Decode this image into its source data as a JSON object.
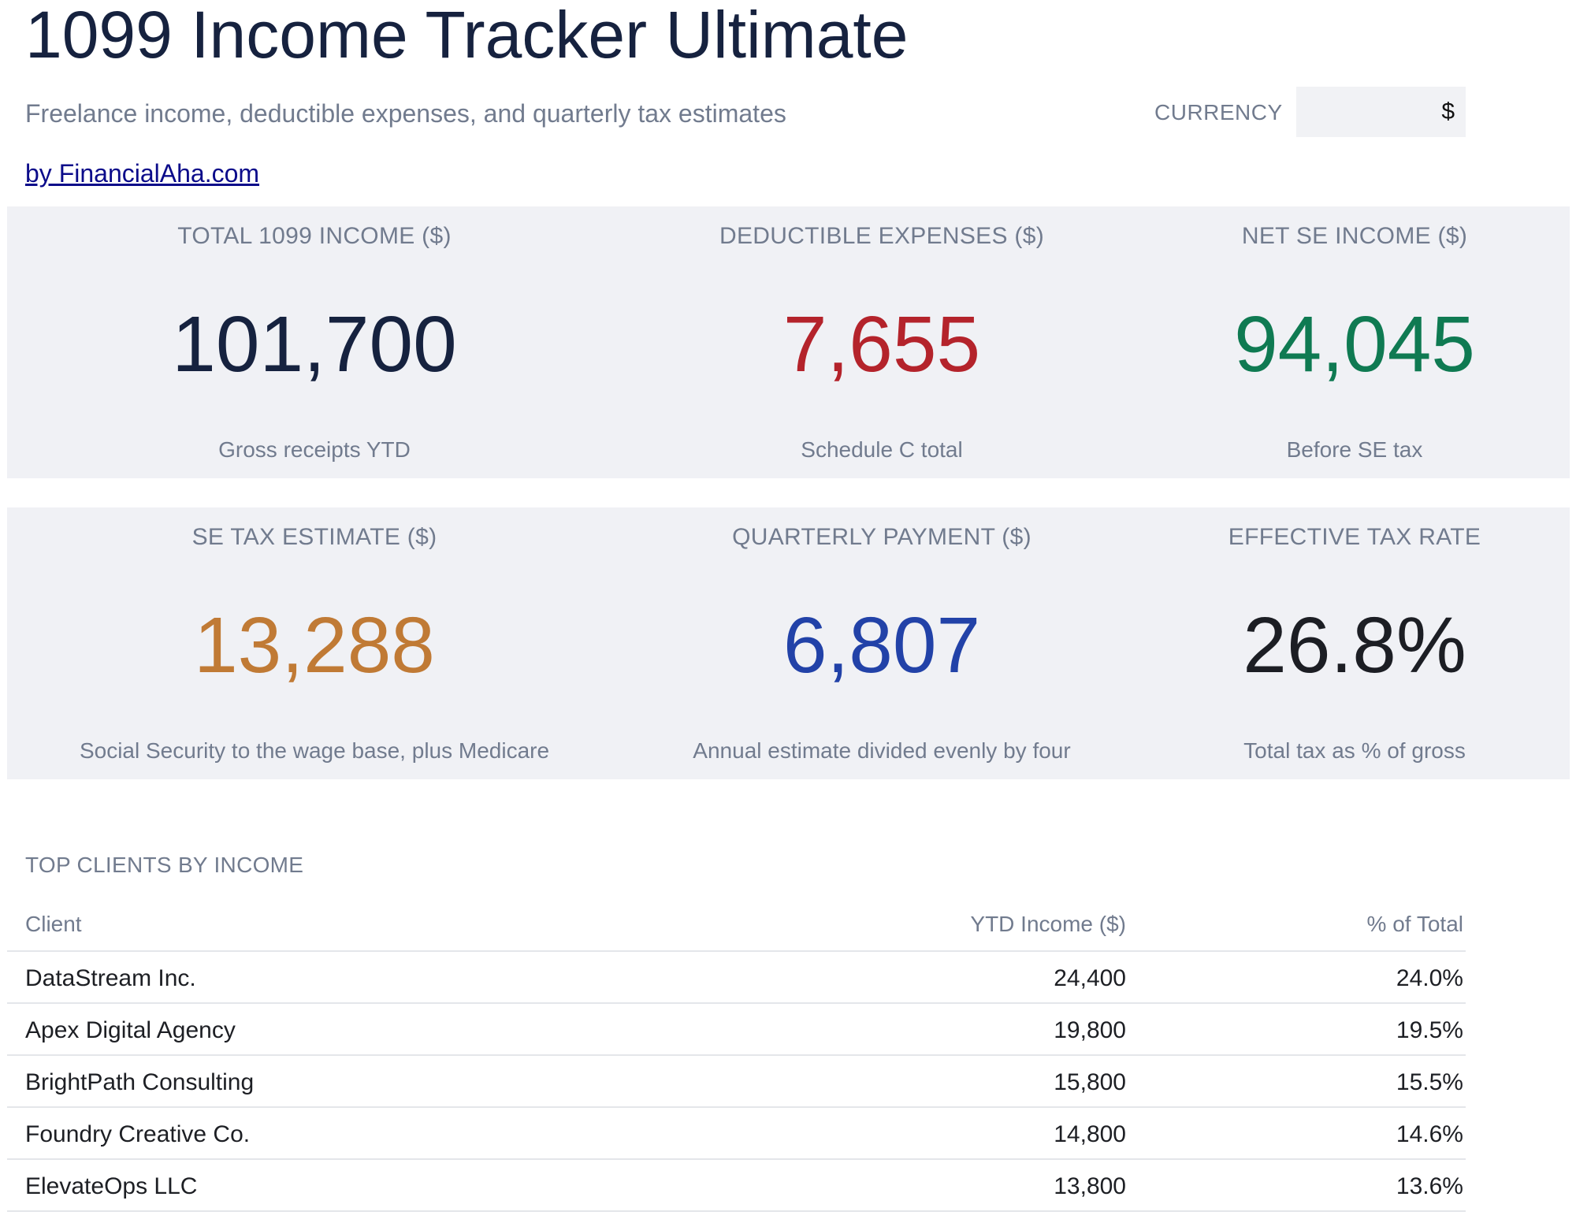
{
  "header": {
    "title": "1099 Income Tracker Ultimate",
    "subtitle": "Freelance income, deductible expenses, and quarterly tax estimates",
    "byline": "by FinancialAha.com",
    "currency_label": "CURRENCY",
    "currency_value": "$"
  },
  "kpis": [
    {
      "label": "TOTAL 1099 INCOME ($)",
      "value": "101,700",
      "sub": "Gross receipts YTD",
      "color": "#16223f"
    },
    {
      "label": "DEDUCTIBLE EXPENSES ($)",
      "value": "7,655",
      "sub": "Schedule C total",
      "color": "#b4232b"
    },
    {
      "label": "NET SE INCOME ($)",
      "value": "94,045",
      "sub": "Before SE tax",
      "color": "#0f7a52"
    },
    {
      "label": "SE TAX ESTIMATE ($)",
      "value": "13,288",
      "sub": "Social Security to the wage base, plus Medicare",
      "color": "#c07a35"
    },
    {
      "label": "QUARTERLY PAYMENT ($)",
      "value": "6,807",
      "sub": "Annual estimate divided evenly by four",
      "color": "#2242a8"
    },
    {
      "label": "EFFECTIVE TAX RATE",
      "value": "26.8%",
      "sub": "Total tax as % of gross",
      "color": "#1c1e24"
    }
  ],
  "clients": {
    "title": "TOP CLIENTS BY INCOME",
    "columns": [
      "Client",
      "YTD Income ($)",
      "% of Total"
    ],
    "rows": [
      [
        "DataStream Inc.",
        "24,400",
        "24.0%"
      ],
      [
        "Apex Digital Agency",
        "19,800",
        "19.5%"
      ],
      [
        "BrightPath Consulting",
        "15,800",
        "15.5%"
      ],
      [
        "Foundry Creative Co.",
        "14,800",
        "14.6%"
      ],
      [
        "ElevateOps LLC",
        "13,800",
        "13.6%"
      ]
    ]
  }
}
